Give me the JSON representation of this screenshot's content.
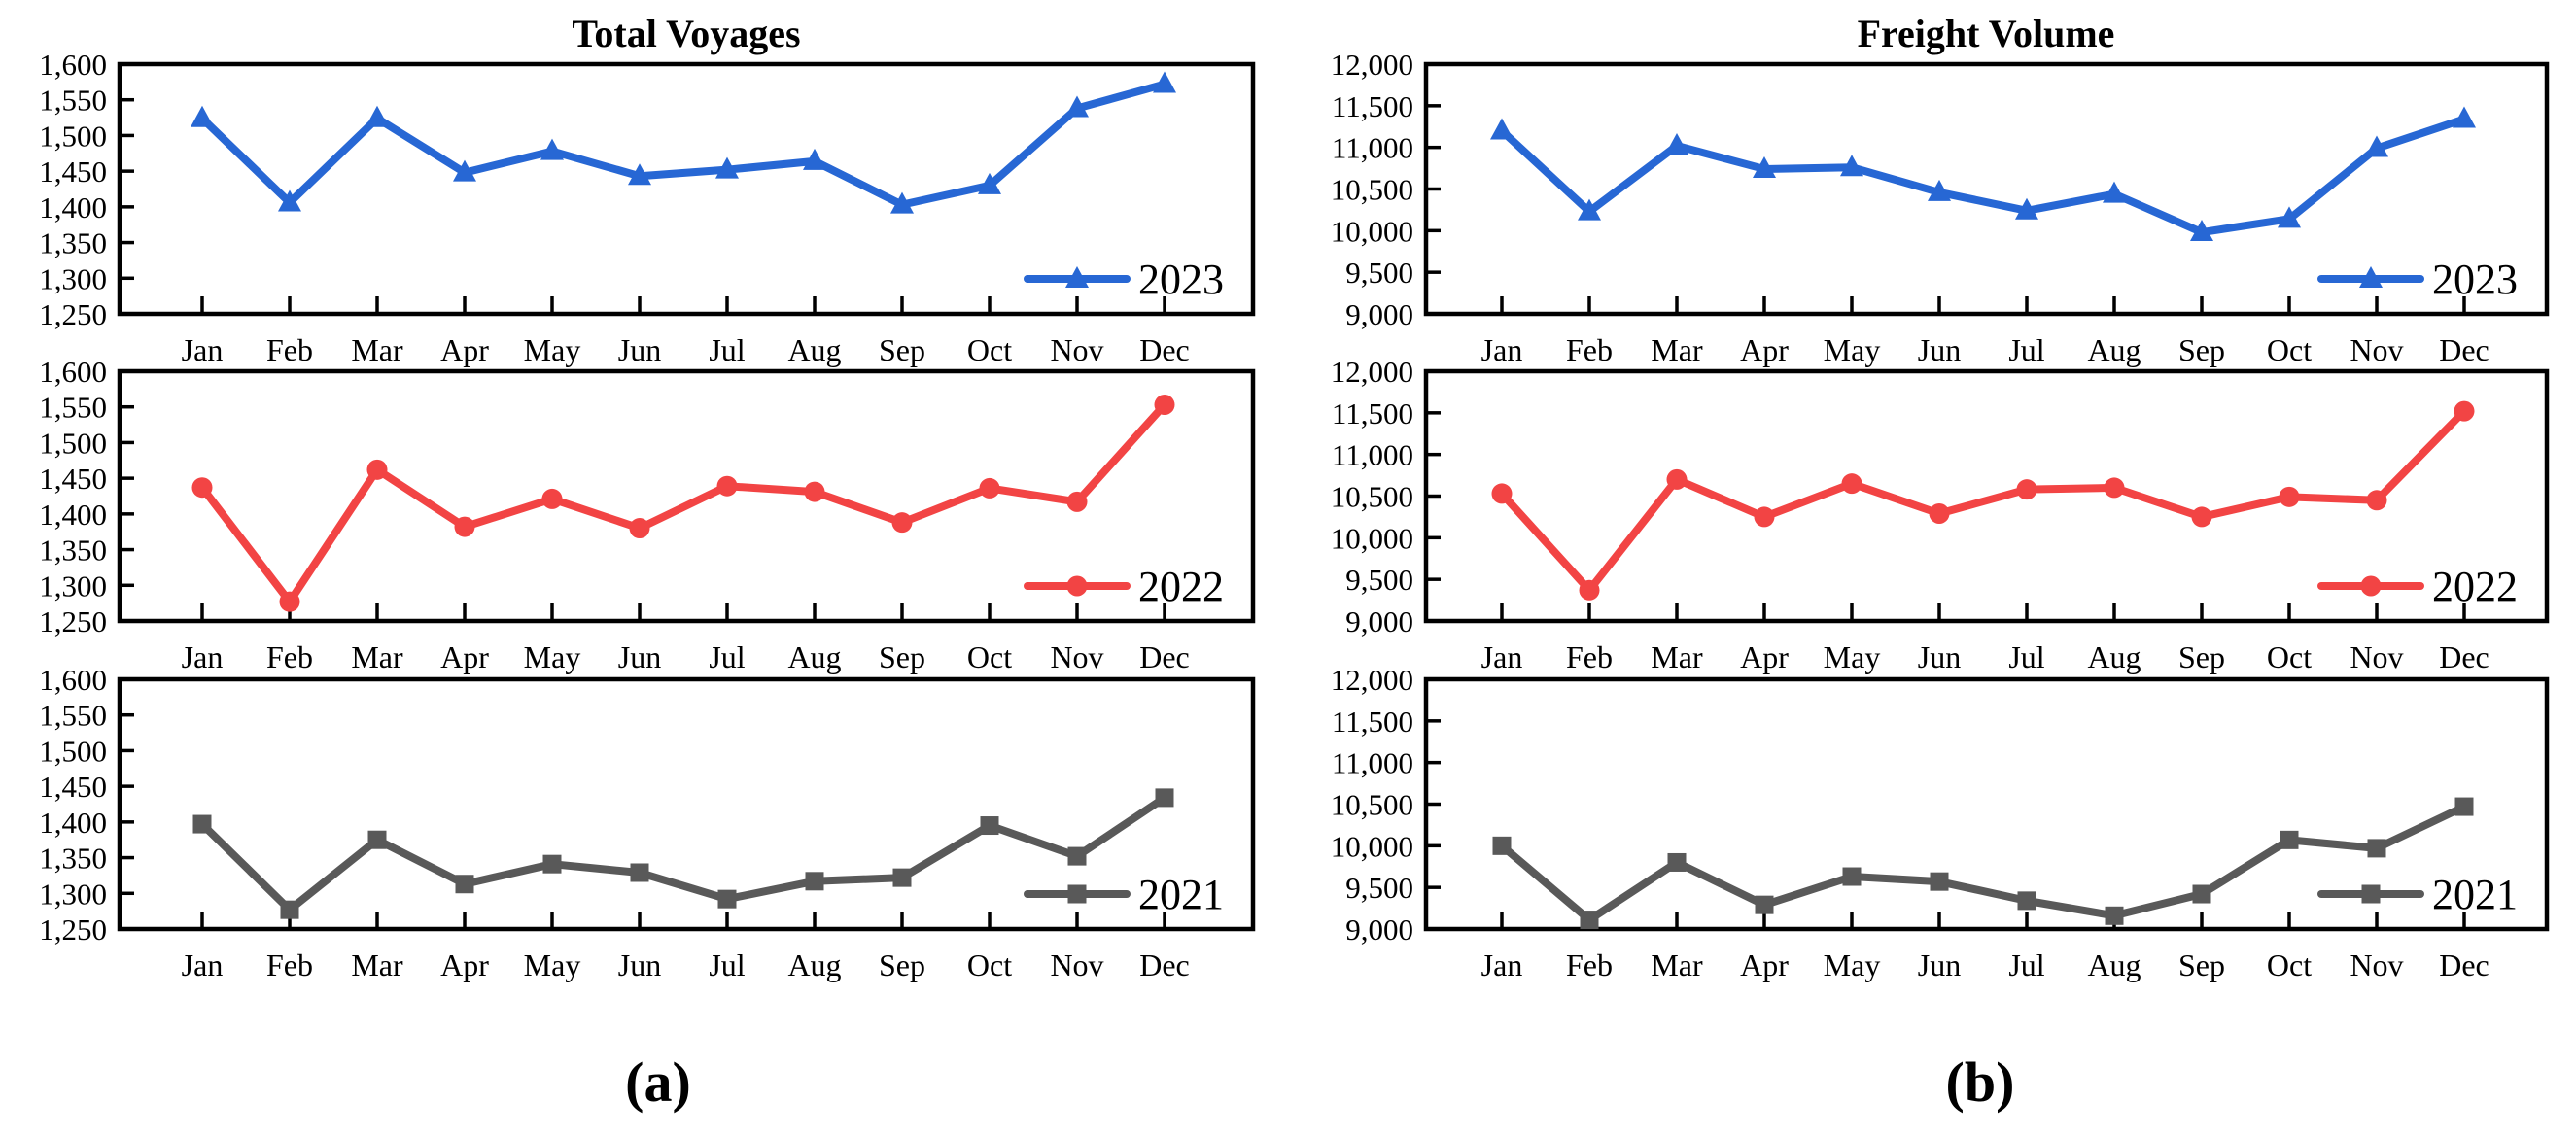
{
  "chart_data": [
    {
      "id": "a",
      "type": "line",
      "title": "Total Voyages",
      "caption": "(a)",
      "xlabel": "",
      "ylabel": "",
      "grid": false,
      "legend_position": "inside-bottom-right",
      "categories": [
        "Jan",
        "Feb",
        "Mar",
        "Apr",
        "May",
        "Jun",
        "Jul",
        "Aug",
        "Sep",
        "Oct",
        "Nov",
        "Dec"
      ],
      "ylim": [
        1250,
        1600
      ],
      "ytick_step": 50,
      "ytick_labels": [
        "1,600",
        "1,550",
        "1,500",
        "1,450",
        "1,400",
        "1,350",
        "1,300",
        "1,250"
      ],
      "series": [
        {
          "name": "2023",
          "color": "#2767d4",
          "marker": "triangle",
          "values": [
            1524,
            1406,
            1524,
            1448,
            1478,
            1443,
            1452,
            1464,
            1403,
            1430,
            1538,
            1572
          ]
        },
        {
          "name": "2022",
          "color": "#f24444",
          "marker": "circle",
          "values": [
            1437,
            1277,
            1462,
            1382,
            1421,
            1380,
            1439,
            1431,
            1388,
            1436,
            1417,
            1553
          ]
        },
        {
          "name": "2021",
          "color": "#595959",
          "marker": "square",
          "values": [
            1397,
            1277,
            1375,
            1313,
            1341,
            1329,
            1292,
            1317,
            1322,
            1395,
            1352,
            1434
          ]
        }
      ]
    },
    {
      "id": "b",
      "type": "line",
      "title": "Freight Volume",
      "caption": "(b)",
      "xlabel": "",
      "ylabel": "",
      "grid": false,
      "legend_position": "inside-bottom-right",
      "categories": [
        "Jan",
        "Feb",
        "Mar",
        "Apr",
        "May",
        "Jun",
        "Jul",
        "Aug",
        "Sep",
        "Oct",
        "Nov",
        "Dec"
      ],
      "ylim": [
        9000,
        12000
      ],
      "ytick_step": 500,
      "ytick_labels": [
        "12,000",
        "11,500",
        "11,000",
        "10,500",
        "10,000",
        "9,500",
        "9,000"
      ],
      "series": [
        {
          "name": "2023",
          "color": "#2767d4",
          "marker": "triangle",
          "values": [
            11200,
            10230,
            11020,
            10740,
            10760,
            10460,
            10240,
            10440,
            9980,
            10140,
            10990,
            11340
          ]
        },
        {
          "name": "2022",
          "color": "#f24444",
          "marker": "circle",
          "values": [
            10530,
            9370,
            10700,
            10250,
            10650,
            10290,
            10580,
            10600,
            10250,
            10490,
            10450,
            11520
          ]
        },
        {
          "name": "2021",
          "color": "#595959",
          "marker": "square",
          "values": [
            10000,
            9110,
            9800,
            9290,
            9630,
            9570,
            9340,
            9160,
            9420,
            10070,
            9970,
            10470
          ]
        }
      ]
    }
  ]
}
